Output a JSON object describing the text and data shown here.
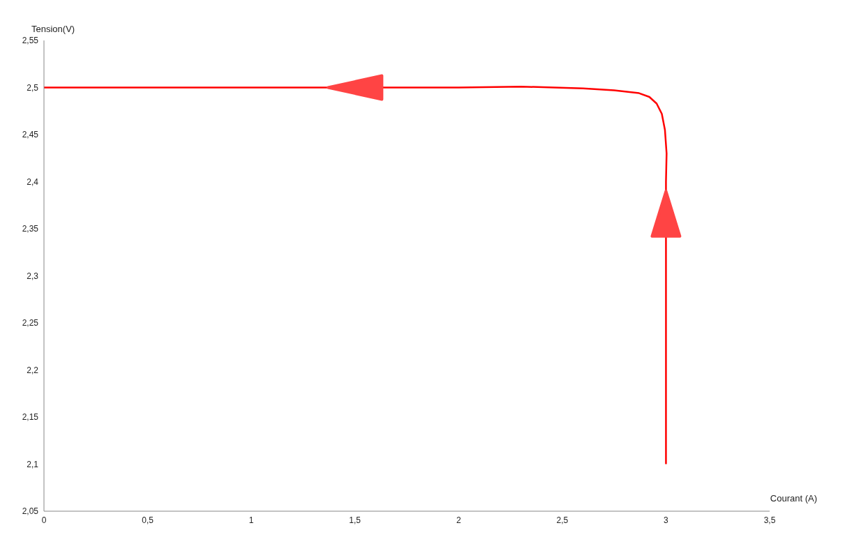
{
  "chart_data": {
    "type": "line",
    "xlabel": "Courant  (A)",
    "ylabel": "Tension(V)",
    "series": [
      {
        "color": "#ff0000",
        "x": [
          3,
          3,
          3,
          3.003,
          2.995,
          2.98,
          2.955,
          2.92,
          2.87,
          2.75,
          2.6,
          2.3,
          2,
          1,
          0
        ],
        "values": [
          2.1,
          2.3,
          2.4,
          2.43,
          2.455,
          2.472,
          2.483,
          2.49,
          2.494,
          2.497,
          2.499,
          2.501,
          2.5,
          2.5,
          2.5
        ]
      }
    ],
    "xlim": [
      0,
      3.5
    ],
    "xticks": [
      0,
      {
        "value": 0.5,
        "label": "0,5"
      },
      1,
      {
        "value": 1.5,
        "label": "1,5"
      },
      2,
      {
        "value": 2.5,
        "label": "2,5"
      },
      3,
      {
        "value": 3.5,
        "label": "3,5"
      }
    ],
    "ylim": [
      2.05,
      2.55
    ],
    "yticks": [
      {
        "value": 2.05,
        "label": "2,05"
      },
      {
        "value": 2.1,
        "label": "2,1"
      },
      {
        "value": 2.15,
        "label": "2,15"
      },
      {
        "value": 2.2,
        "label": "2,2"
      },
      {
        "value": 2.25,
        "label": "2,25"
      },
      {
        "value": 2.3,
        "label": "2,3"
      },
      {
        "value": 2.35,
        "label": "2,35"
      },
      {
        "value": 2.4,
        "label": "2,4"
      },
      {
        "value": 2.45,
        "label": "2,45"
      },
      {
        "value": 2.5,
        "label": "2,5"
      },
      {
        "value": 2.55,
        "label": "2,55"
      }
    ],
    "grid": false,
    "legend": false,
    "marker": "none",
    "line_style": "solid"
  }
}
